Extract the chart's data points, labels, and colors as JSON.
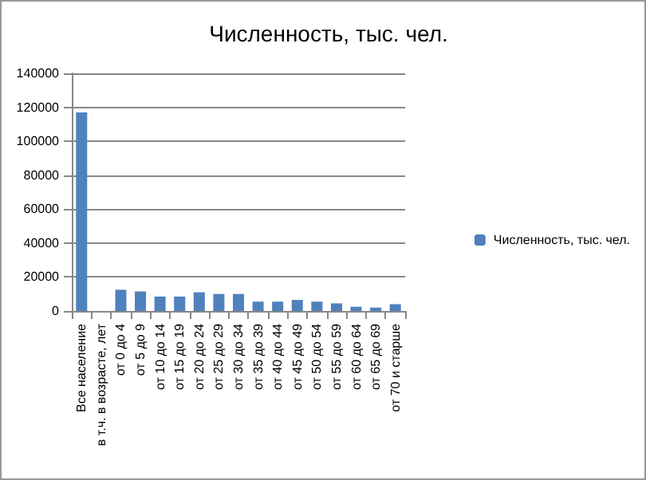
{
  "chart_data": {
    "type": "bar",
    "title": "Численность, тыс. чел.",
    "categories": [
      "Все население",
      "в т.ч. в возрасте, лет",
      "от 0 до 4",
      "от 5 до 9",
      "от 10 до 14",
      "от 15 до 19",
      "от 20 до 24",
      "от 25 до 29",
      "от 30 до 34",
      "от 35 до 39",
      "от 40 до 44",
      "от 45 до 49",
      "от 50 до 54",
      "от 55 до 59",
      "от 60 до 64",
      "от 65 до 69",
      "от 70 и старше"
    ],
    "series": [
      {
        "name": "Численность, тыс. чел.",
        "color": "#4f81bd",
        "values": [
          117000,
          null,
          12500,
          11500,
          8500,
          8500,
          11000,
          10000,
          10000,
          5500,
          5500,
          6500,
          5500,
          4500,
          2500,
          2000,
          4000
        ]
      }
    ],
    "ylim": [
      0,
      140000
    ],
    "yticks": [
      0,
      20000,
      40000,
      60000,
      80000,
      100000,
      120000,
      140000
    ],
    "grid": "y",
    "legend": "right"
  }
}
